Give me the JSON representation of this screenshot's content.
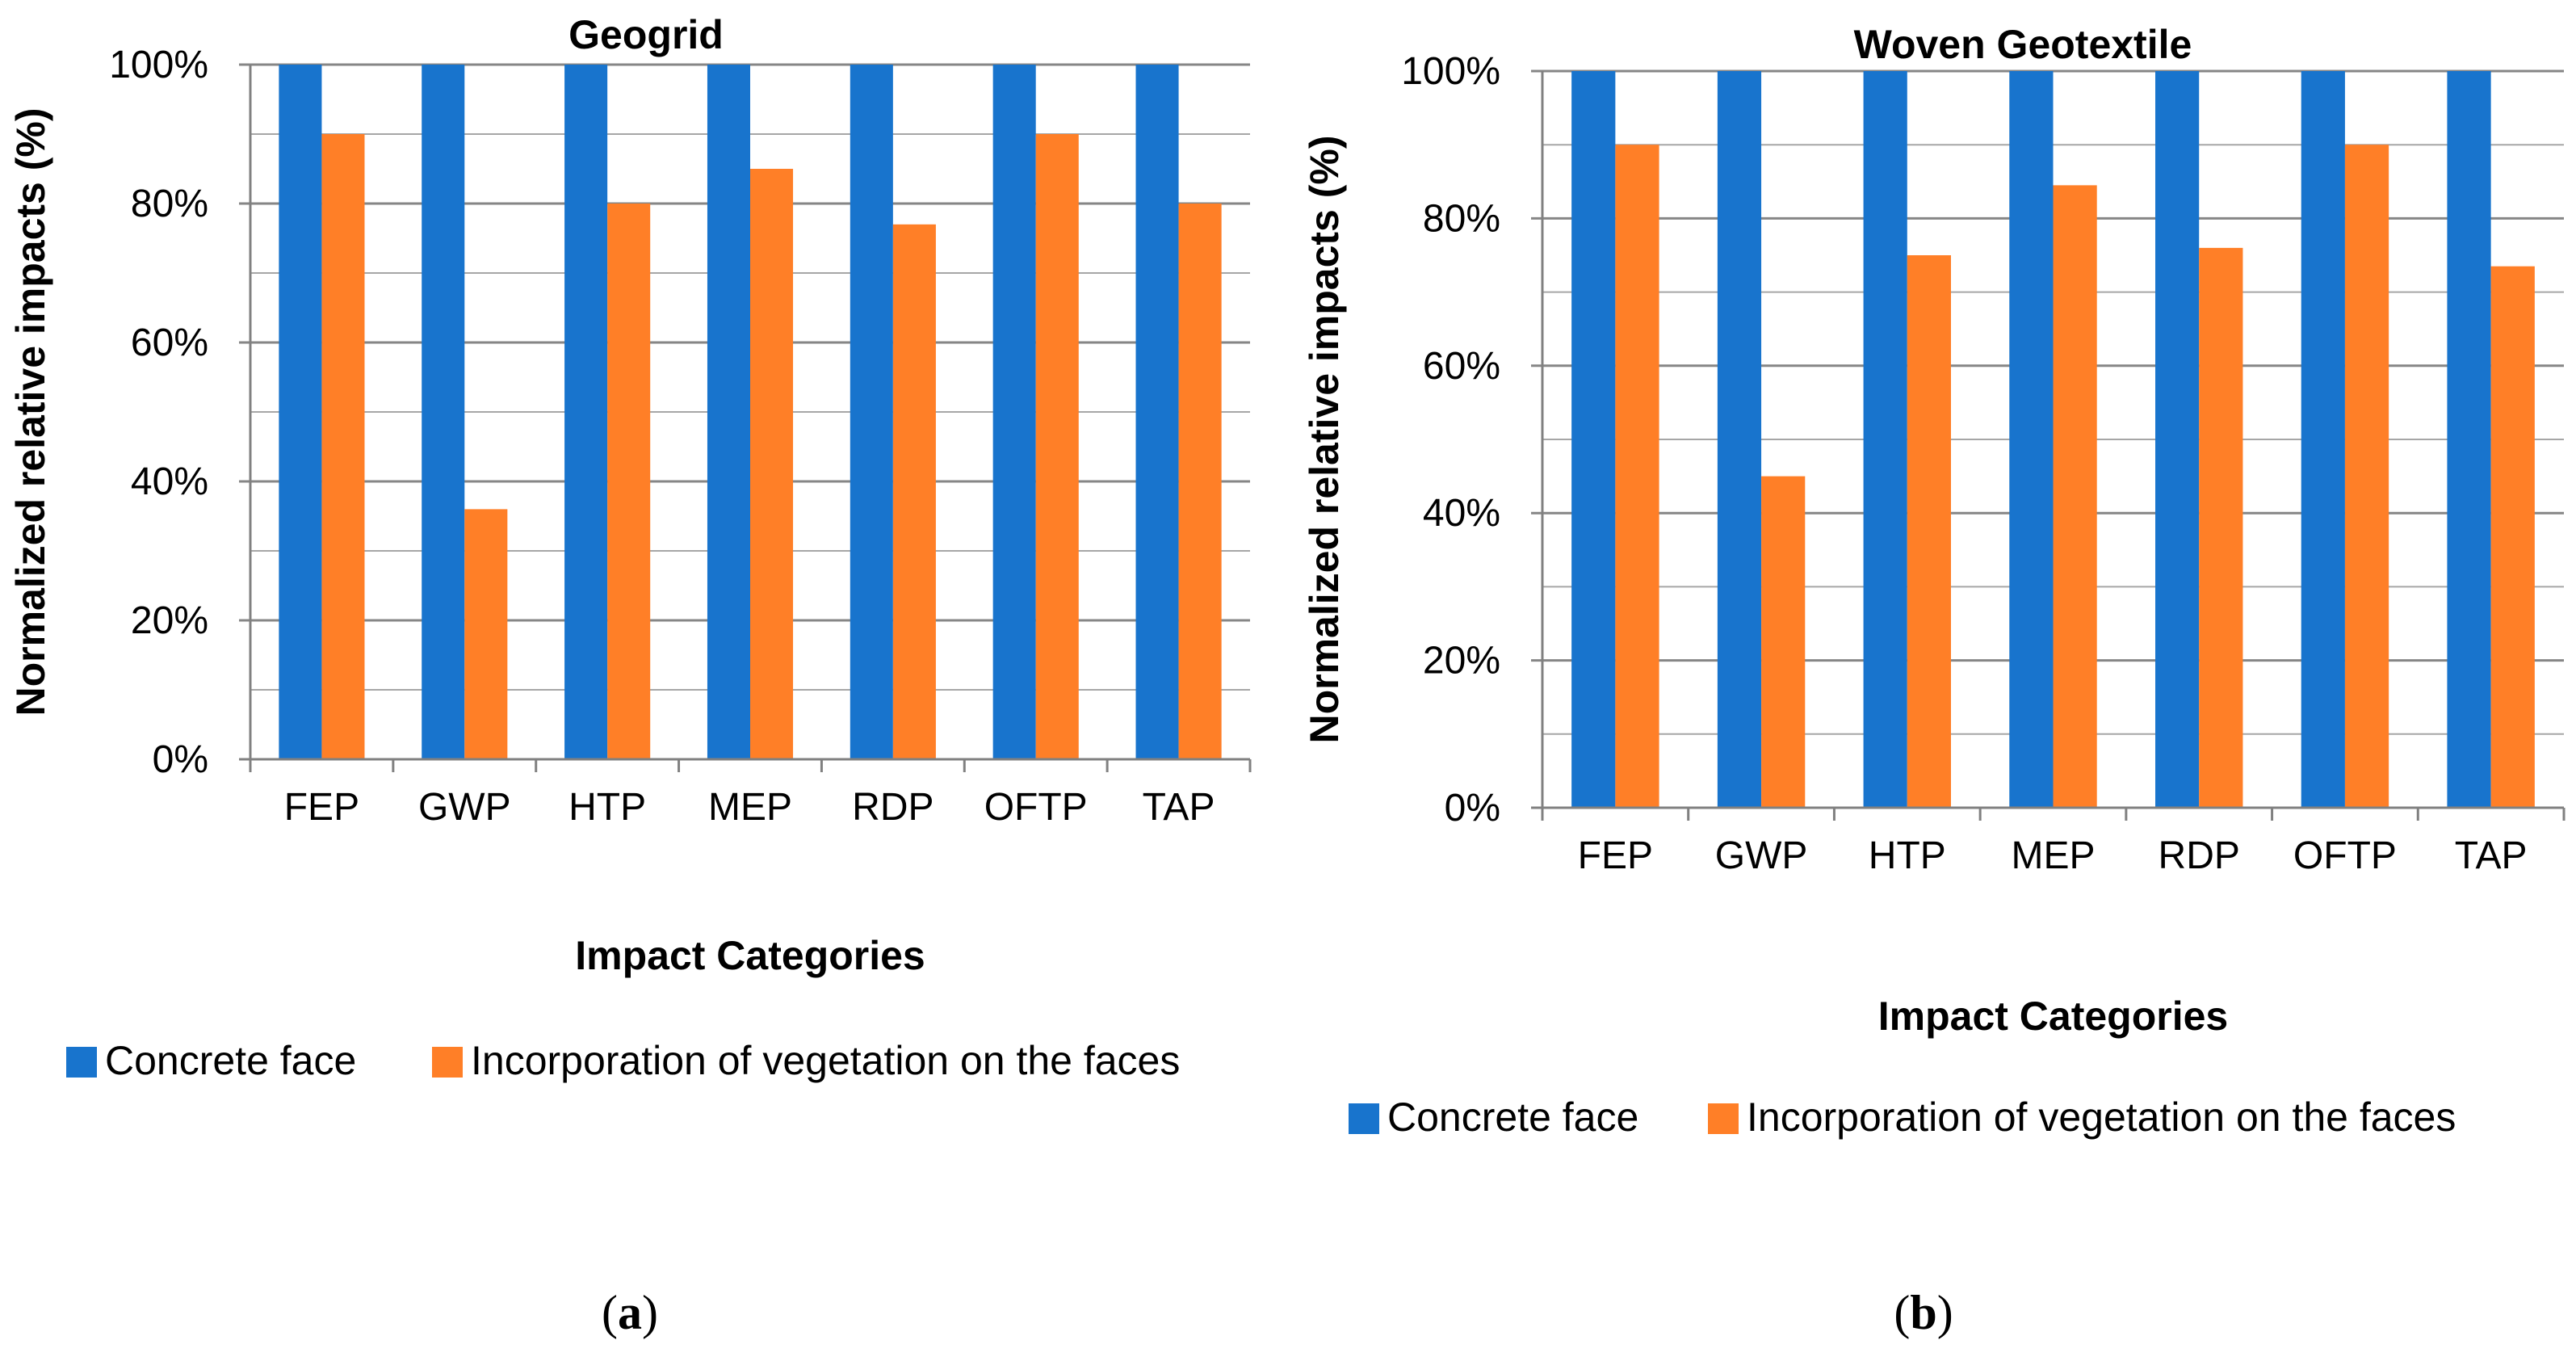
{
  "colors": {
    "concrete": "#1874CD",
    "vegetation": "#FF7F27",
    "grid": "#A6A6A6",
    "gridMajor": "#868686",
    "axis": "#808080"
  },
  "chart_data": [
    {
      "type": "bar",
      "title": "Geogrid",
      "xlabel": "Impact Categories",
      "ylabel": "Normalized relative impacts (%)",
      "ylim": [
        0,
        100
      ],
      "yticks": [
        "0%",
        "20%",
        "40%",
        "60%",
        "80%",
        "100%"
      ],
      "categories": [
        "FEP",
        "GWP",
        "HTP",
        "MEP",
        "RDP",
        "OFTP",
        "TAP"
      ],
      "series": [
        {
          "name": "Concrete face",
          "values": [
            100,
            100,
            100,
            100,
            100,
            100,
            100
          ]
        },
        {
          "name": "Incorporation of vegetation on the faces",
          "values": [
            90,
            36,
            80,
            85,
            77,
            90,
            80
          ]
        }
      ],
      "legend": "bottom",
      "caption": {
        "open": "(",
        "letter": "a",
        "close": ")"
      }
    },
    {
      "type": "bar",
      "title": "Woven Geotextile",
      "xlabel": "Impact Categories",
      "ylabel": "Normalized relative impacts (%)",
      "ylim": [
        0,
        100
      ],
      "yticks": [
        "0%",
        "20%",
        "40%",
        "60%",
        "80%",
        "100%"
      ],
      "categories": [
        "FEP",
        "GWP",
        "HTP",
        "MEP",
        "RDP",
        "OFTP",
        "TAP"
      ],
      "series": [
        {
          "name": "Concrete face",
          "values": [
            100,
            100,
            100,
            100,
            100,
            100,
            100
          ]
        },
        {
          "name": "Incorporation of vegetation on the faces",
          "values": [
            90,
            45,
            75,
            84.5,
            76,
            90,
            73.5
          ]
        }
      ],
      "legend": "bottom",
      "caption": {
        "open": "(",
        "letter": "b",
        "close": ")"
      }
    }
  ]
}
